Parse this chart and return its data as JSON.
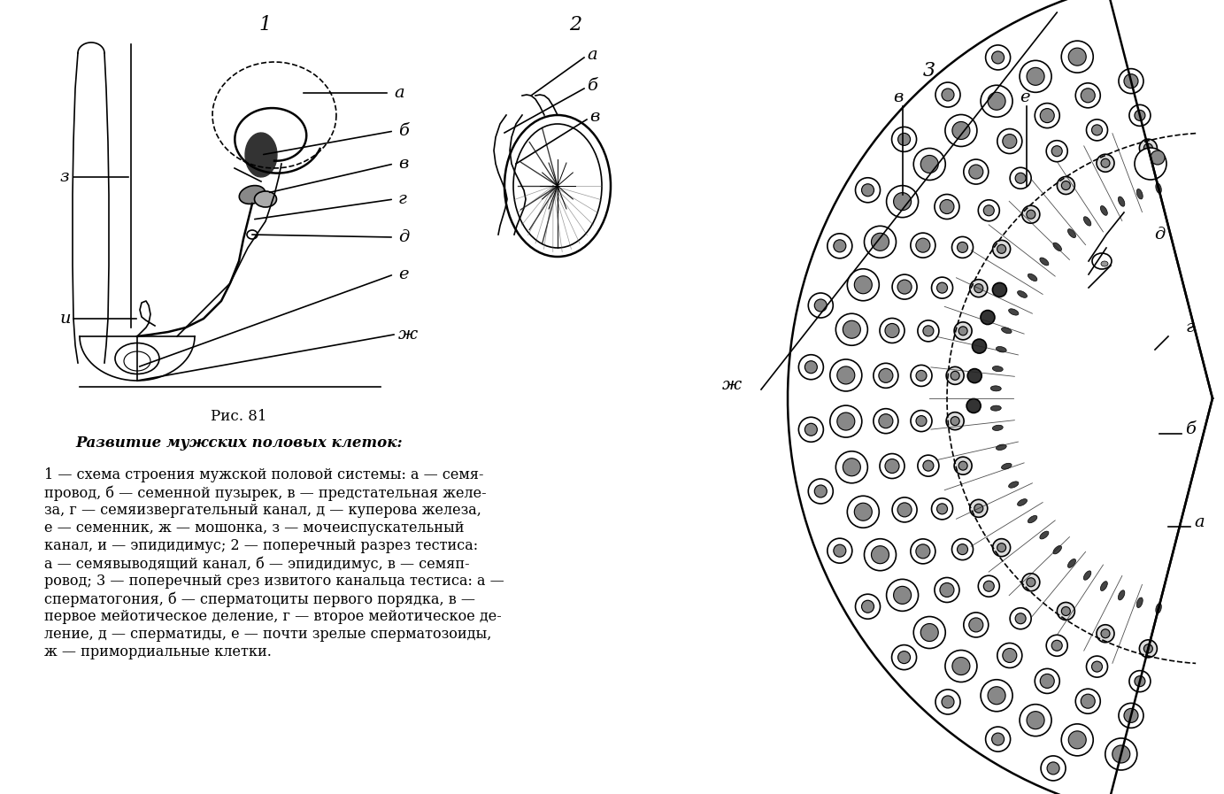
{
  "title": "Рис. 81",
  "bold_title": "Развитие мужских половых клеток:",
  "caption_lines": [
    "1 — схема строения мужской половой системы: а — семя-",
    "провод, б — семенной пузырек, в — предстательная желе-",
    "за, г — семяизвергательный канал, д — куперова железа,",
    "е — семенник, ж — мошонка, з — мочеиспускательный",
    "канал, и — эпидидимус; 2 — поперечный разрез тестиса:",
    "а — семявыводящий канал, б — эпидидимус, в — семяп-",
    "ровод; 3 — поперечный срез извитого канальца тестиса: а —",
    "сперматогония, б — сперматоциты первого порядка, в —",
    "первое мейотическое деление, г — второе мейотическое де-",
    "ление, д — сперматиды, е — почти зрелые сперматозоиды,",
    "ж — примордиальные клетки."
  ],
  "bg_color": "#ffffff",
  "line_color": "#000000",
  "fig1_number": "1",
  "fig2_number": "2",
  "fig3_number": "3",
  "label_fontsize": 14,
  "caption_fontsize": 11.5,
  "title_fontsize": 12
}
